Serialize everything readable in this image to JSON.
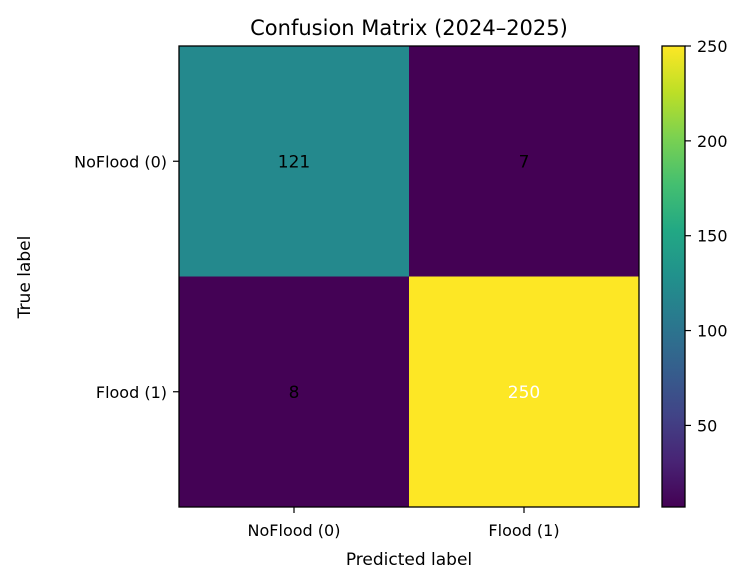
{
  "chart_data": {
    "type": "heatmap",
    "title": "Confusion Matrix (2024–2025)",
    "xlabel": "Predicted label",
    "ylabel": "True label",
    "x_categories": [
      "NoFlood (0)",
      "Flood (1)"
    ],
    "y_categories": [
      "NoFlood (0)",
      "Flood (1)"
    ],
    "values": [
      [
        121,
        7
      ],
      [
        8,
        250
      ]
    ],
    "cell_labels": [
      [
        "121",
        "7"
      ],
      [
        "8",
        "250"
      ]
    ],
    "colormap": "viridis",
    "colorbar": {
      "range": [
        7,
        250
      ],
      "ticks": [
        50,
        100,
        150,
        200,
        250
      ],
      "tick_labels": [
        "50",
        "100",
        "150",
        "200",
        "250"
      ]
    },
    "grid": false,
    "legend": "none"
  }
}
